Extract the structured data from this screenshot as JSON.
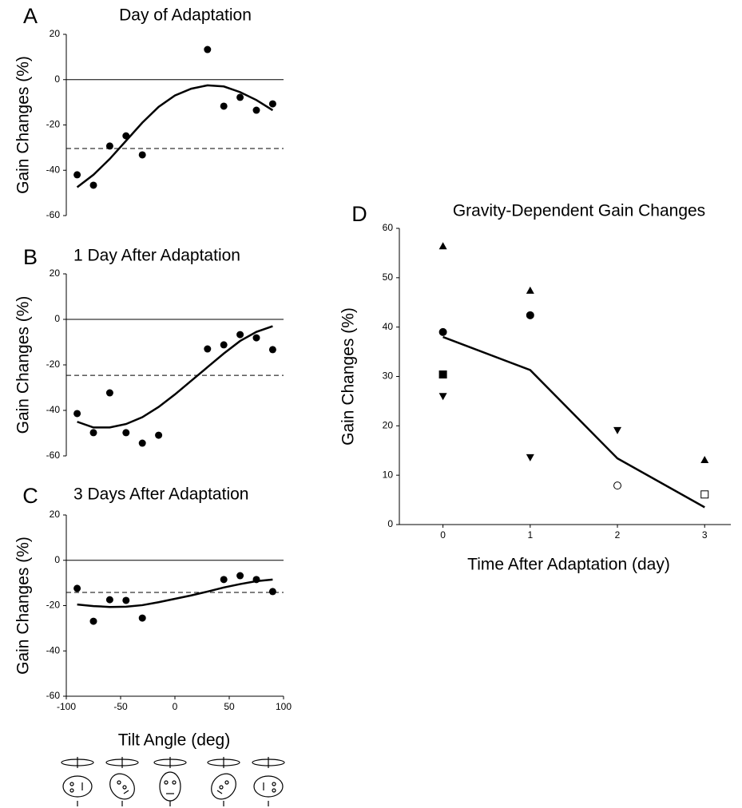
{
  "chart_data": [
    {
      "type": "scatter",
      "panel_label": "A",
      "title": "Day of Adaptation",
      "ylabel": "Gain Changes (%)",
      "x": [
        -90,
        -75,
        -60,
        -45,
        -30,
        30,
        45,
        60,
        75,
        90
      ],
      "values": [
        -42,
        -46.6,
        -29.3,
        -24.8,
        -33.2,
        13.3,
        -11.7,
        -7.8,
        -13.5,
        -10.7
      ],
      "fit": {
        "x": [
          -90,
          -75,
          -60,
          -45,
          -30,
          -15,
          0,
          15,
          30,
          45,
          60,
          75,
          90
        ],
        "values": [
          -47.5,
          -42,
          -35,
          -27,
          -19,
          -12,
          -7,
          -4,
          -2.5,
          -3,
          -5.5,
          -9,
          -13.5
        ]
      },
      "mean": -30.4,
      "reference": 0,
      "color": "#000000",
      "xlim": [
        -100,
        100
      ],
      "ylim": [
        -60,
        20
      ],
      "yticks": [
        -60,
        -40,
        -20,
        0,
        20
      ]
    },
    {
      "type": "scatter",
      "panel_label": "B",
      "title": "1 Day After Adaptation",
      "ylabel": "Gain Changes (%)",
      "x": [
        -90,
        -75,
        -60,
        -45,
        -30,
        -15,
        30,
        45,
        60,
        75,
        90
      ],
      "values": [
        -41.4,
        -49.8,
        -32.3,
        -49.8,
        -54.4,
        -50.9,
        -13,
        -11.2,
        -6.7,
        -8.1,
        -13.3
      ],
      "fit": {
        "x": [
          -90,
          -75,
          -60,
          -45,
          -30,
          -15,
          0,
          15,
          30,
          45,
          60,
          75,
          90
        ],
        "values": [
          -45,
          -47.5,
          -47.5,
          -46,
          -43,
          -38.5,
          -33,
          -27,
          -21,
          -15,
          -9.5,
          -5.5,
          -3
        ]
      },
      "mean": -24.6,
      "reference": 0,
      "color": "#000000",
      "xlim": [
        -100,
        100
      ],
      "ylim": [
        -60,
        20
      ],
      "yticks": [
        -60,
        -40,
        -20,
        0,
        20
      ]
    },
    {
      "type": "scatter",
      "panel_label": "C",
      "title": "3 Days After Adaptation",
      "ylabel": "Gain Changes (%)",
      "xlabel": "Tilt Angle (deg)",
      "x": [
        -90,
        -75,
        -60,
        -45,
        -30,
        45,
        60,
        75,
        90
      ],
      "values": [
        -12.4,
        -26.9,
        -17.4,
        -17.7,
        -25.5,
        -8.5,
        -6.8,
        -8.5,
        -13.8
      ],
      "fit": {
        "x": [
          -90,
          -75,
          -60,
          -45,
          -30,
          -15,
          0,
          15,
          30,
          45,
          60,
          75,
          90
        ],
        "values": [
          -19.5,
          -20.2,
          -20.6,
          -20.5,
          -19.8,
          -18.5,
          -17,
          -15.5,
          -13.8,
          -12,
          -10.5,
          -9.2,
          -8.5
        ]
      },
      "mean": -14.2,
      "reference": 0,
      "color": "#000000",
      "xlim": [
        -100,
        100
      ],
      "xticks": [
        -100,
        -50,
        0,
        50,
        100
      ],
      "ylim": [
        -60,
        20
      ],
      "yticks": [
        -60,
        -40,
        -20,
        0,
        20
      ]
    },
    {
      "type": "line",
      "panel_label": "D",
      "title": "Gravity-Dependent Gain Changes",
      "xlabel": "Time After Adaptation (day)",
      "ylabel": "Gain Changes (%)",
      "x": [
        0,
        1,
        2,
        3
      ],
      "series": [
        {
          "marker": "triangle-up",
          "color": "#000000",
          "values": [
            56.4,
            47.4,
            null,
            13.1
          ]
        },
        {
          "marker": "circle",
          "color": "#000000",
          "values": [
            39,
            42.4,
            null,
            null
          ]
        },
        {
          "marker": "square",
          "color": "#000000",
          "values": [
            30.4,
            null,
            null,
            null
          ]
        },
        {
          "marker": "triangle-down",
          "color": "#000000",
          "values": [
            26,
            13.6,
            19.1,
            null
          ]
        },
        {
          "marker": "circle-open",
          "color": "#000000",
          "values": [
            null,
            null,
            7.9,
            null
          ]
        },
        {
          "marker": "square-open",
          "color": "#000000",
          "values": [
            null,
            null,
            null,
            6.1
          ]
        }
      ],
      "line": {
        "color": "#000000",
        "values": [
          38,
          31.3,
          13.4,
          3.5
        ]
      },
      "xlim": [
        -0.5,
        3.3
      ],
      "xticks": [
        0,
        1,
        2,
        3
      ],
      "ylim": [
        0,
        60
      ],
      "yticks": [
        0,
        10,
        20,
        30,
        40,
        50,
        60
      ]
    }
  ]
}
